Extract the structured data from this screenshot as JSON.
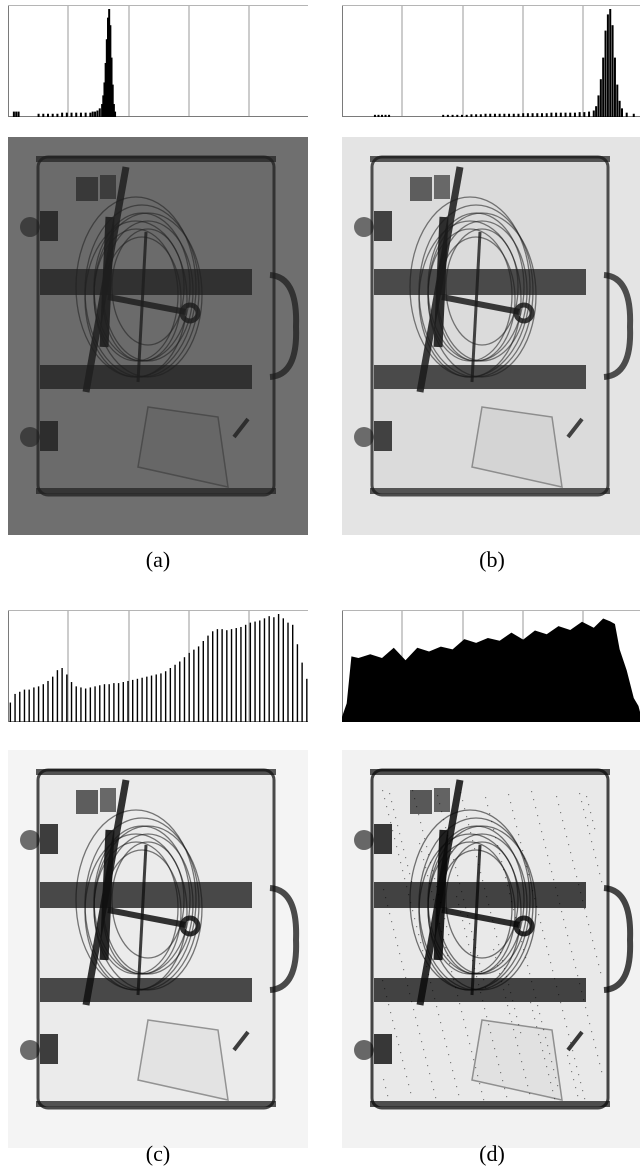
{
  "figure": {
    "panels": [
      {
        "id": "a",
        "caption": "(a)",
        "variant": "original-dark",
        "image_bg": "#6f6f6f",
        "line": "#1e1e1e"
      },
      {
        "id": "b",
        "caption": "(b)",
        "variant": "stretched",
        "image_bg": "#e4e4e4",
        "line": "#1a1a1a"
      },
      {
        "id": "c",
        "caption": "(c)",
        "variant": "equalized",
        "image_bg": "#f4f4f4",
        "line": "#111111"
      },
      {
        "id": "d",
        "caption": "(d)",
        "variant": "equalized-noisy",
        "image_bg": "#f2f2f2",
        "line": "#0a0a0a"
      }
    ]
  },
  "chart_data": [
    {
      "type": "bar",
      "panel": "a",
      "xlim": [
        0,
        255
      ],
      "ylim": [
        0,
        1
      ],
      "grid": "vertical",
      "bins": [
        [
          5,
          0.05
        ],
        [
          7,
          0.05
        ],
        [
          9,
          0.05
        ],
        [
          26,
          0.03
        ],
        [
          30,
          0.03
        ],
        [
          34,
          0.03
        ],
        [
          38,
          0.03
        ],
        [
          42,
          0.03
        ],
        [
          46,
          0.04
        ],
        [
          50,
          0.04
        ],
        [
          54,
          0.04
        ],
        [
          58,
          0.04
        ],
        [
          62,
          0.04
        ],
        [
          66,
          0.04
        ],
        [
          70,
          0.04
        ],
        [
          72,
          0.05
        ],
        [
          74,
          0.05
        ],
        [
          76,
          0.06
        ],
        [
          78,
          0.08
        ],
        [
          80,
          0.12
        ],
        [
          81,
          0.2
        ],
        [
          82,
          0.32
        ],
        [
          83,
          0.5
        ],
        [
          84,
          0.72
        ],
        [
          85,
          0.92
        ],
        [
          86,
          1.0
        ],
        [
          87,
          0.85
        ],
        [
          88,
          0.55
        ],
        [
          89,
          0.3
        ],
        [
          90,
          0.12
        ],
        [
          91,
          0.05
        ]
      ]
    },
    {
      "type": "bar",
      "panel": "b",
      "xlim": [
        0,
        255
      ],
      "ylim": [
        0,
        1
      ],
      "grid": "vertical",
      "bins": [
        [
          28,
          0.02
        ],
        [
          31,
          0.02
        ],
        [
          34,
          0.02
        ],
        [
          37,
          0.02
        ],
        [
          40,
          0.02
        ],
        [
          86,
          0.02
        ],
        [
          90,
          0.02
        ],
        [
          94,
          0.02
        ],
        [
          98,
          0.02
        ],
        [
          102,
          0.02
        ],
        [
          106,
          0.02
        ],
        [
          110,
          0.025
        ],
        [
          114,
          0.025
        ],
        [
          118,
          0.025
        ],
        [
          122,
          0.03
        ],
        [
          126,
          0.03
        ],
        [
          130,
          0.03
        ],
        [
          134,
          0.03
        ],
        [
          138,
          0.03
        ],
        [
          142,
          0.03
        ],
        [
          146,
          0.03
        ],
        [
          150,
          0.03
        ],
        [
          154,
          0.035
        ],
        [
          158,
          0.035
        ],
        [
          162,
          0.035
        ],
        [
          166,
          0.035
        ],
        [
          170,
          0.035
        ],
        [
          174,
          0.035
        ],
        [
          178,
          0.04
        ],
        [
          182,
          0.04
        ],
        [
          186,
          0.04
        ],
        [
          190,
          0.04
        ],
        [
          194,
          0.04
        ],
        [
          198,
          0.04
        ],
        [
          202,
          0.045
        ],
        [
          206,
          0.045
        ],
        [
          210,
          0.05
        ],
        [
          214,
          0.06
        ],
        [
          216,
          0.1
        ],
        [
          218,
          0.2
        ],
        [
          220,
          0.35
        ],
        [
          222,
          0.55
        ],
        [
          224,
          0.8
        ],
        [
          226,
          0.95
        ],
        [
          228,
          1.0
        ],
        [
          230,
          0.85
        ],
        [
          232,
          0.55
        ],
        [
          234,
          0.3
        ],
        [
          236,
          0.15
        ],
        [
          238,
          0.08
        ],
        [
          242,
          0.04
        ],
        [
          248,
          0.03
        ]
      ]
    },
    {
      "type": "bar",
      "panel": "c",
      "xlim": [
        0,
        255
      ],
      "ylim": [
        0,
        1
      ],
      "grid": "vertical",
      "bins": [
        [
          2,
          0.18
        ],
        [
          6,
          0.26
        ],
        [
          10,
          0.28
        ],
        [
          14,
          0.3
        ],
        [
          18,
          0.3
        ],
        [
          22,
          0.32
        ],
        [
          26,
          0.33
        ],
        [
          30,
          0.35
        ],
        [
          34,
          0.38
        ],
        [
          38,
          0.42
        ],
        [
          42,
          0.48
        ],
        [
          46,
          0.5
        ],
        [
          50,
          0.44
        ],
        [
          54,
          0.37
        ],
        [
          58,
          0.33
        ],
        [
          62,
          0.32
        ],
        [
          66,
          0.31
        ],
        [
          70,
          0.32
        ],
        [
          74,
          0.33
        ],
        [
          78,
          0.34
        ],
        [
          82,
          0.35
        ],
        [
          86,
          0.35
        ],
        [
          90,
          0.36
        ],
        [
          94,
          0.36
        ],
        [
          98,
          0.37
        ],
        [
          102,
          0.38
        ],
        [
          106,
          0.39
        ],
        [
          110,
          0.4
        ],
        [
          114,
          0.41
        ],
        [
          118,
          0.42
        ],
        [
          122,
          0.43
        ],
        [
          126,
          0.44
        ],
        [
          130,
          0.45
        ],
        [
          134,
          0.47
        ],
        [
          138,
          0.5
        ],
        [
          142,
          0.53
        ],
        [
          146,
          0.56
        ],
        [
          150,
          0.6
        ],
        [
          154,
          0.64
        ],
        [
          158,
          0.67
        ],
        [
          162,
          0.7
        ],
        [
          166,
          0.75
        ],
        [
          170,
          0.8
        ],
        [
          174,
          0.84
        ],
        [
          178,
          0.86
        ],
        [
          182,
          0.86
        ],
        [
          186,
          0.85
        ],
        [
          190,
          0.86
        ],
        [
          194,
          0.87
        ],
        [
          198,
          0.88
        ],
        [
          202,
          0.9
        ],
        [
          206,
          0.92
        ],
        [
          210,
          0.93
        ],
        [
          214,
          0.94
        ],
        [
          218,
          0.96
        ],
        [
          222,
          0.98
        ],
        [
          226,
          0.97
        ],
        [
          230,
          1.0
        ],
        [
          234,
          0.96
        ],
        [
          238,
          0.92
        ],
        [
          242,
          0.9
        ],
        [
          246,
          0.72
        ],
        [
          250,
          0.55
        ],
        [
          254,
          0.4
        ]
      ]
    },
    {
      "type": "area",
      "panel": "d",
      "xlim": [
        0,
        255
      ],
      "ylim": [
        0,
        1
      ],
      "grid": "vertical",
      "points": [
        [
          0,
          0.02
        ],
        [
          4,
          0.2
        ],
        [
          8,
          0.58
        ],
        [
          14,
          0.62
        ],
        [
          24,
          0.6
        ],
        [
          34,
          0.62
        ],
        [
          44,
          0.66
        ],
        [
          54,
          0.6
        ],
        [
          64,
          0.66
        ],
        [
          74,
          0.68
        ],
        [
          84,
          0.67
        ],
        [
          94,
          0.7
        ],
        [
          104,
          0.74
        ],
        [
          114,
          0.76
        ],
        [
          124,
          0.75
        ],
        [
          134,
          0.78
        ],
        [
          144,
          0.8
        ],
        [
          154,
          0.79
        ],
        [
          164,
          0.82
        ],
        [
          174,
          0.84
        ],
        [
          184,
          0.86
        ],
        [
          194,
          0.88
        ],
        [
          204,
          0.9
        ],
        [
          214,
          0.9
        ],
        [
          222,
          0.93
        ],
        [
          228,
          0.96
        ],
        [
          232,
          0.88
        ],
        [
          236,
          0.7
        ],
        [
          242,
          0.45
        ],
        [
          248,
          0.25
        ],
        [
          252,
          0.12
        ],
        [
          255,
          0.05
        ]
      ]
    }
  ]
}
